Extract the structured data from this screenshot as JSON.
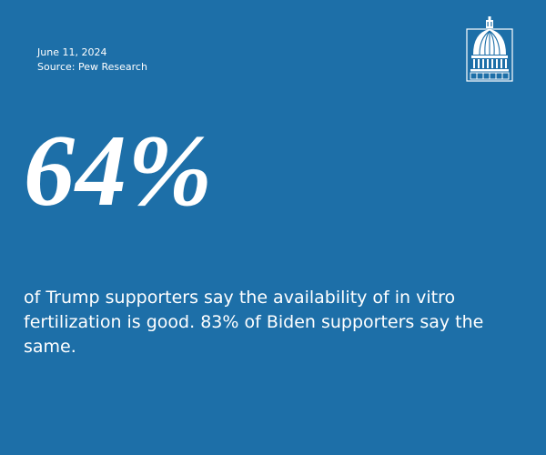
{
  "date": "June 11, 2024",
  "source": "Source: Pew Research",
  "stat": "64%",
  "description": "of Trump supporters say the availability of in vitro fertilization is good. 83% of Biden supporters say the same.",
  "logo_icon": "capitol-dome-icon",
  "colors": {
    "background": "#1d6fa8",
    "text": "#ffffff"
  }
}
